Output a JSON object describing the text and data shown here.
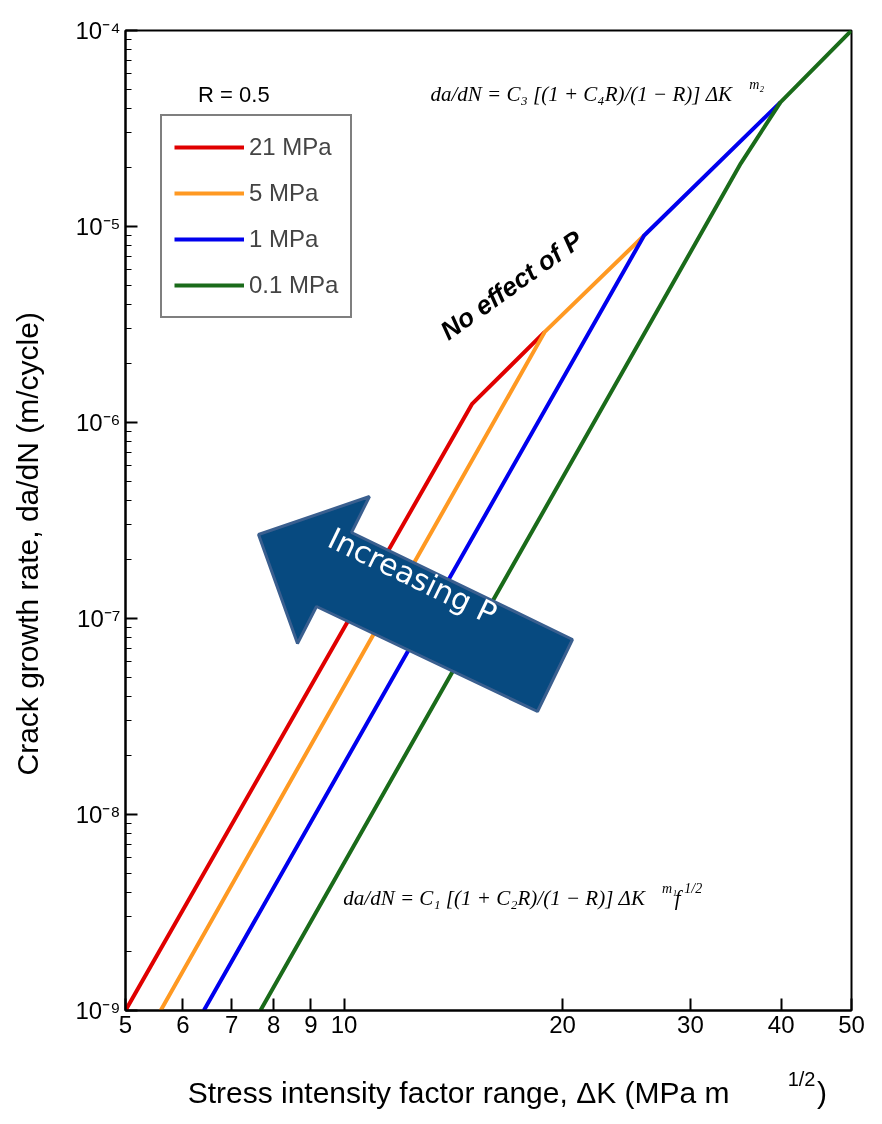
{
  "chart_data": {
    "type": "line",
    "xlabel": "Stress intensity factor range, ΔK (MPa m$^{1/2}$)",
    "ylabel": "Crack growth rate, da/dN (m/cycle)",
    "log": "xy",
    "xlim": [
      5,
      50
    ],
    "ylim": [
      1e-09,
      0.0001
    ],
    "xticks": [
      5,
      6,
      7,
      8,
      9,
      10,
      20,
      30,
      40,
      50
    ],
    "yticks": [
      {
        "value": 1e-09,
        "label": "10⁻⁹"
      },
      {
        "value": 1e-08,
        "label": "10⁻⁸"
      },
      {
        "value": 1e-07,
        "label": "10⁻⁷"
      },
      {
        "value": 1e-06,
        "label": "10⁻⁶"
      },
      {
        "value": 1e-05,
        "label": "10⁻⁵"
      },
      {
        "value": 0.0001,
        "label": "10⁻⁴"
      }
    ],
    "grid": false,
    "legend": "top left",
    "marker": "none",
    "line_style": "solid",
    "series": [
      {
        "name": "21 MPa",
        "color": "#e00000",
        "x": [
          5,
          15.0,
          18.9
        ],
        "values": [
          1e-09,
          1.24e-06,
          2.9e-06
        ]
      },
      {
        "name": "5 MPa",
        "color": "#ff9922",
        "x": [
          5.59,
          18.9,
          25.9
        ],
        "values": [
          1e-09,
          2.9e-06,
          9e-06
        ]
      },
      {
        "name": "1 MPa",
        "color": "#0000ee",
        "x": [
          6.41,
          25.9,
          39.9
        ],
        "values": [
          1e-09,
          9e-06,
          4.3e-05
        ]
      },
      {
        "name": "0.1 MPa",
        "color": "#1a6b1a",
        "x": [
          7.67,
          35.2,
          39.9,
          50
        ],
        "values": [
          1e-09,
          2.1e-05,
          4.3e-05,
          0.0001
        ]
      }
    ],
    "annotations": [
      "R = 0.5",
      "da/dN = C₃ [(1 + C₄R)/(1 − R)] ΔK$^{m₂}$",
      "No effect of P",
      "Increasing P",
      "da/dN = C₁ [(1 + C₂R)/(1 − R)] ΔK$^{m₁}$f$^{1/2}$"
    ]
  }
}
